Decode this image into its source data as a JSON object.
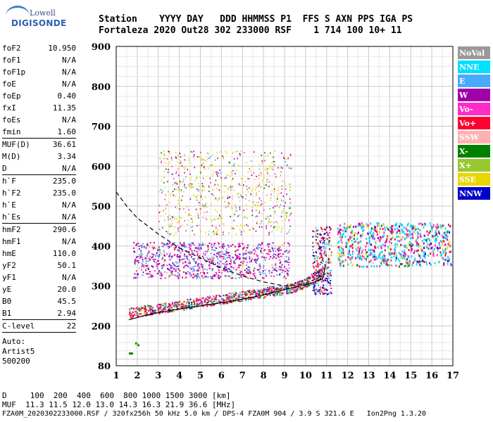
{
  "logo": {
    "line1": "Lowell",
    "line2": "DIGISONDE"
  },
  "header": {
    "line1": "Station    YYYY DAY   DDD HHMMSS P1  FFS S AXN PPS IGA PS",
    "line2": "Fortaleza 2020 Out28 302 233000 RSF    1 714 100 10+ 11"
  },
  "params": [
    {
      "name": "foF2",
      "value": "10.950"
    },
    {
      "name": "foF1",
      "value": "N/A"
    },
    {
      "name": "foF1p",
      "value": "N/A"
    },
    {
      "name": "foE",
      "value": "N/A"
    },
    {
      "name": "foEp",
      "value": "0.40"
    },
    {
      "name": "fxI",
      "value": "11.35"
    },
    {
      "name": "foEs",
      "value": "N/A"
    },
    {
      "name": "fmin",
      "value": "1.60"
    },
    {
      "sep": true
    },
    {
      "name": "MUF(D)",
      "value": "36.61"
    },
    {
      "name": "M(D)",
      "value": "3.34"
    },
    {
      "name": "D",
      "value": "N/A"
    },
    {
      "sep": true
    },
    {
      "name": "h`F",
      "value": "235.0"
    },
    {
      "name": "h`F2",
      "value": "235.0"
    },
    {
      "name": "h`E",
      "value": "N/A"
    },
    {
      "name": "h`Es",
      "value": "N/A"
    },
    {
      "sep": true
    },
    {
      "name": "hmF2",
      "value": "290.6"
    },
    {
      "name": "hmF1",
      "value": "N/A"
    },
    {
      "name": "hmE",
      "value": "110.0"
    },
    {
      "name": "yF2",
      "value": "50.1"
    },
    {
      "name": "yF1",
      "value": "N/A"
    },
    {
      "name": "yE",
      "value": "20.0"
    },
    {
      "name": "B0",
      "value": "45.5"
    },
    {
      "name": "B1",
      "value": "2.94"
    },
    {
      "sep": true
    },
    {
      "name": "C-level",
      "value": "22"
    },
    {
      "sep": true
    }
  ],
  "auto": [
    "Auto:",
    "Artist5",
    "500200"
  ],
  "legend": [
    {
      "label": "NoVal",
      "color": "#999999"
    },
    {
      "label": "NNE",
      "color": "#00e0ff"
    },
    {
      "label": "E",
      "color": "#4aa8ff"
    },
    {
      "label": "W",
      "color": "#a000a8"
    },
    {
      "label": "Vo-",
      "color": "#ff2cc8"
    },
    {
      "label": "Vo+",
      "color": "#ff0030"
    },
    {
      "label": "SSW",
      "color": "#ffb0b0"
    },
    {
      "label": "X-",
      "color": "#008000"
    },
    {
      "label": "X+",
      "color": "#98c830"
    },
    {
      "label": "SSE",
      "color": "#e8d800"
    },
    {
      "label": "NNW",
      "color": "#0000c8"
    }
  ],
  "footer": {
    "line1": "D     100  200  400  600  800 1000 1500 3000 [km]",
    "line2": "MUF  11.3 11.5 12.0 13.0 14.3 16.3 21.9 36.6 [MHz]",
    "line3": "FZA0M_2020302233000.RSF / 320fx256h 50 kHz 5.0 km / DPS-4 FZA0M 904 / 3.9 S 321.6 E   Ion2Png 1.3.20"
  },
  "chart_data": {
    "type": "scatter",
    "xlim": [
      1,
      17
    ],
    "ylim": [
      80,
      900
    ],
    "x_ticks": [
      "1",
      "2",
      "3",
      "4",
      "5",
      "6",
      "7",
      "8",
      "9",
      "10",
      "11",
      "12",
      "13",
      "14",
      "15",
      "16",
      "17"
    ],
    "y_ticks": [
      "80",
      "200",
      "300",
      "400",
      "500",
      "600",
      "700",
      "800",
      "900"
    ],
    "grid": true,
    "series": [
      {
        "name": "profile",
        "style": "solid",
        "x": [
          1.6,
          2.5,
          3.5,
          4.5,
          5.5,
          6.5,
          7.5,
          8.5,
          9.5,
          10.2,
          10.8,
          10.95
        ],
        "y": [
          215,
          228,
          238,
          246,
          254,
          262,
          272,
          284,
          297,
          305,
          318,
          350
        ]
      },
      {
        "name": "MUF",
        "style": "dashed",
        "x": [
          1.0,
          1.5,
          2.0,
          3.0,
          4.0,
          5.0,
          6.0,
          7.0,
          8.0,
          9.0,
          10.0,
          10.95
        ],
        "y": [
          535,
          500,
          470,
          430,
          395,
          370,
          345,
          325,
          310,
          300,
          305,
          330
        ]
      }
    ]
  }
}
